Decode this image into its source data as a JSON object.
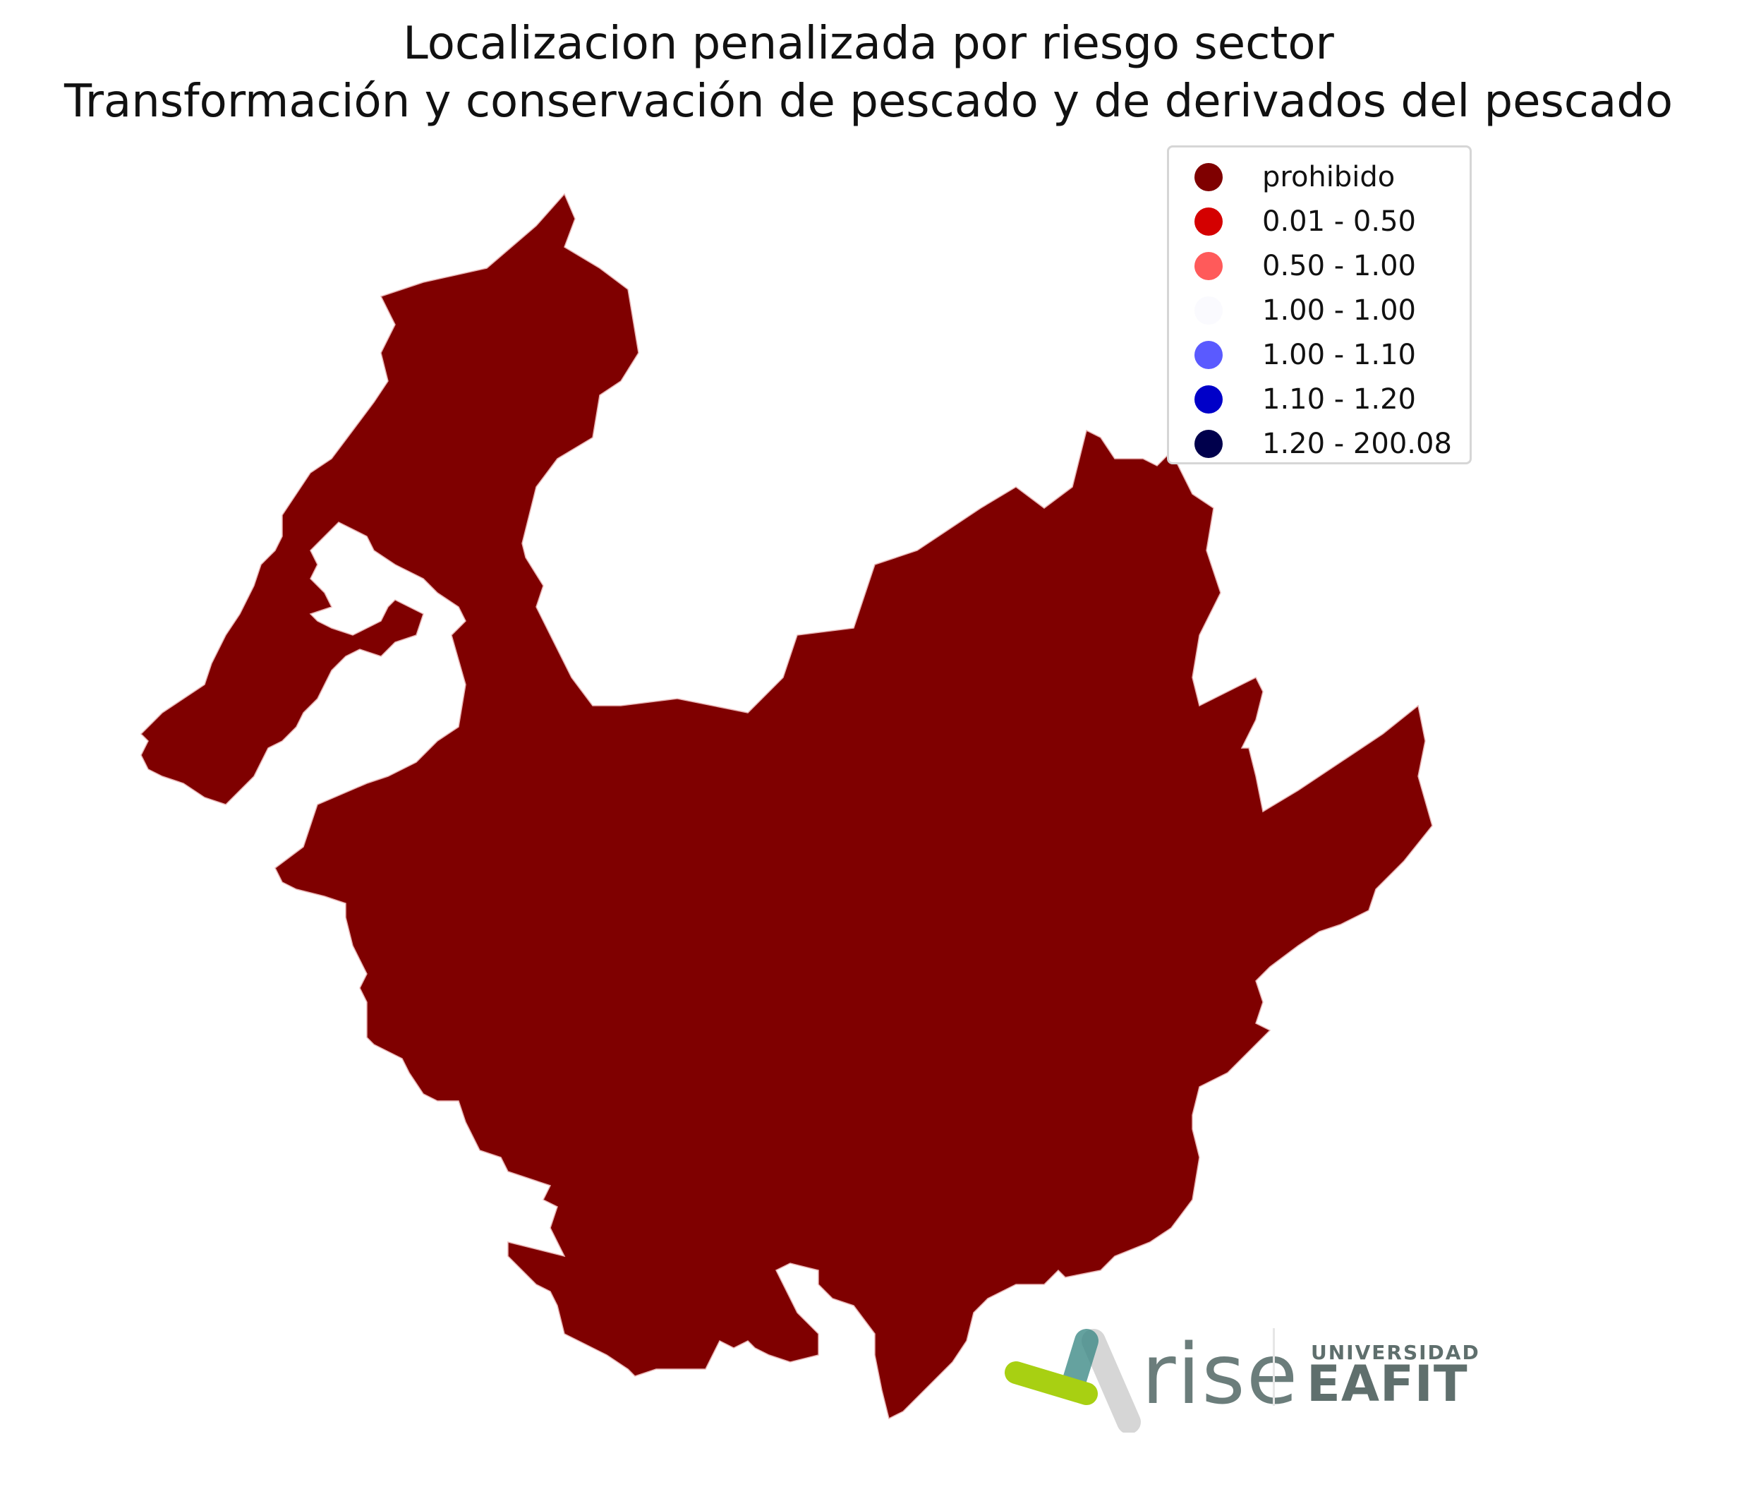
{
  "title_line1": "Localizacion penalizada por riesgo sector",
  "title_line2": "Transformación y conservación de pescado y de derivados del pescado",
  "legend": [
    {
      "label": "prohibido",
      "color": "#7f0000"
    },
    {
      "label": "0.01 - 0.50",
      "color": "#d40000"
    },
    {
      "label": "0.50 - 1.00",
      "color": "#ff5a5a"
    },
    {
      "label": "1.00 - 1.00",
      "color": "#fafafe"
    },
    {
      "label": "1.00 - 1.10",
      "color": "#5a5aff"
    },
    {
      "label": "1.10 - 1.20",
      "color": "#0000c8"
    },
    {
      "label": "1.20 - 200.08",
      "color": "#00004c"
    }
  ],
  "colors": {
    "prohibited": "#7f0000",
    "low": "#d40000",
    "high": "#00004c",
    "border": "#e8b4b4"
  },
  "logos": {
    "rise": "rise",
    "eafit_top": "UNIVERSIDAD",
    "eafit_main": "EAFIT"
  }
}
